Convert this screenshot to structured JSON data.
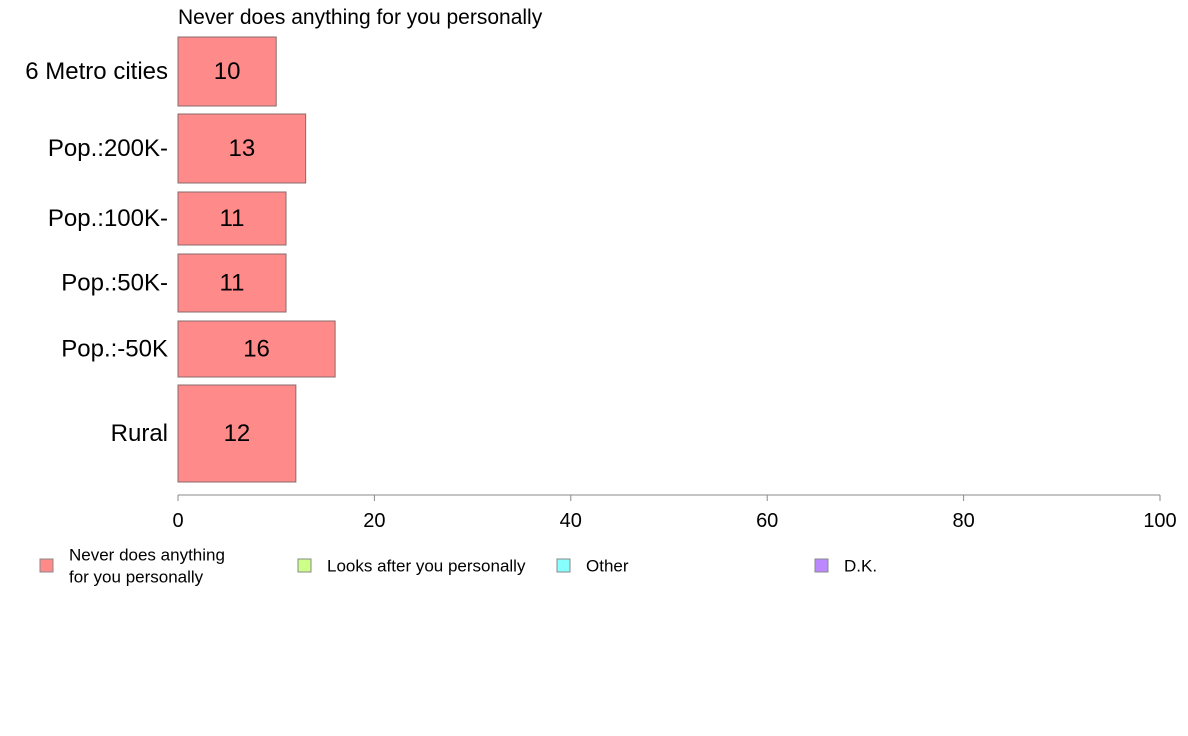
{
  "chart_data": {
    "type": "bar",
    "orientation": "horizontal",
    "title": "Never does anything for you personally",
    "categories": [
      "6 Metro cities",
      "Pop.:200K-",
      "Pop.:100K-",
      "Pop.:50K-",
      "Pop.:-50K",
      "Rural"
    ],
    "series": [
      {
        "name": "Never does anything for you personally",
        "values": [
          10,
          13,
          11,
          11,
          16,
          12
        ],
        "color": "#ff8a8a"
      }
    ],
    "data_labels": [
      "10",
      "13",
      "11",
      "11",
      "16",
      "12"
    ],
    "xlim": [
      0,
      100
    ],
    "xticks": [
      0,
      20,
      40,
      60,
      80,
      100
    ],
    "xtick_labels": [
      "0",
      "20",
      "40",
      "60",
      "80",
      "100"
    ],
    "grid": false,
    "legend": {
      "placement": "bottom",
      "entries": [
        {
          "lines": [
            "Never does anything",
            "for you personally"
          ],
          "color": "#ff8a8a"
        },
        {
          "lines": [
            "Looks after you personally"
          ],
          "color": "#ccff88"
        },
        {
          "lines": [
            "Other"
          ],
          "color": "#88ffff"
        },
        {
          "lines": [
            "D.K."
          ],
          "color": "#bb88ff"
        }
      ]
    }
  }
}
